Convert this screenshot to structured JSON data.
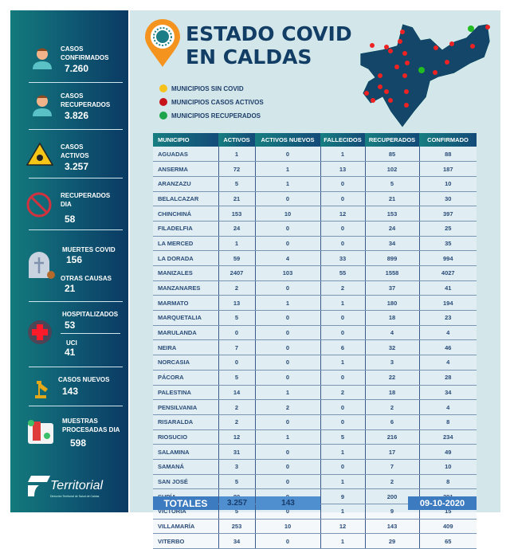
{
  "title": {
    "line1": "ESTADO COVID",
    "line2": "EN CALDAS"
  },
  "legend": [
    {
      "label": "MUNICIPIOS SIN COVID",
      "color": "#f7c21b"
    },
    {
      "label": "MUNICIPIOS CASOS ACTIVOS",
      "color": "#c8121a"
    },
    {
      "label": "MUNICIPIOS RECUPERADOS",
      "color": "#1ca54a"
    }
  ],
  "stats": {
    "confirmados": {
      "label": "CASOS\nCONFIRMADOS",
      "value": "7.260"
    },
    "recuperados": {
      "label": "CASOS\nRECUPERADOS",
      "value": "3.826"
    },
    "activos": {
      "label": "CASOS\nACTIVOS",
      "value": "3.257"
    },
    "recuperados_dia": {
      "label": "RECUPERADOS\nDIA",
      "value": "58"
    },
    "muertes": {
      "label": "MUERTES COVID",
      "value": "156"
    },
    "otras": {
      "label": "OTRAS CAUSAS",
      "value": "21"
    },
    "hospitalizados": {
      "label": "HOSPITALIZADOS",
      "value": "53"
    },
    "uci": {
      "label": "UCI",
      "value": "41"
    },
    "nuevos": {
      "label": "CASOS NUEVOS",
      "value": "143"
    },
    "muestras": {
      "label": "MUESTRAS\nPROCESADAS DIA",
      "value": "598"
    }
  },
  "logo": {
    "name": "Territorial",
    "subtitle": "Dirección Territorial de Salud de Caldas"
  },
  "table": {
    "headers": [
      "MUNICIPIO",
      "ACTIVOS",
      "ACTIVOS NUEVOS",
      "FALLECIDOS",
      "RECUPERADOS",
      "CONFIRMADO"
    ],
    "rows": [
      [
        "AGUADAS",
        "1",
        "0",
        "1",
        "85",
        "88"
      ],
      [
        "ANSERMA",
        "72",
        "1",
        "13",
        "102",
        "187"
      ],
      [
        "ARANZAZU",
        "5",
        "1",
        "0",
        "5",
        "10"
      ],
      [
        "BELALCAZAR",
        "21",
        "0",
        "0",
        "21",
        "30"
      ],
      [
        "CHINCHINÁ",
        "153",
        "10",
        "12",
        "153",
        "397"
      ],
      [
        "FILADELFIA",
        "24",
        "0",
        "0",
        "24",
        "25"
      ],
      [
        "LA MERCED",
        "1",
        "0",
        "0",
        "34",
        "35"
      ],
      [
        "LA DORADA",
        "59",
        "4",
        "33",
        "899",
        "994"
      ],
      [
        "MANIZALES",
        "2407",
        "103",
        "55",
        "1558",
        "4027"
      ],
      [
        "MANZANARES",
        "2",
        "0",
        "2",
        "37",
        "41"
      ],
      [
        "MARMATO",
        "13",
        "1",
        "1",
        "180",
        "194"
      ],
      [
        "MARQUETALIA",
        "5",
        "0",
        "0",
        "18",
        "23"
      ],
      [
        "MARULANDA",
        "0",
        "0",
        "0",
        "4",
        "4"
      ],
      [
        "NEIRA",
        "7",
        "0",
        "6",
        "32",
        "46"
      ],
      [
        "NORCASIA",
        "0",
        "0",
        "1",
        "3",
        "4"
      ],
      [
        "PÁCORA",
        "5",
        "0",
        "0",
        "22",
        "28"
      ],
      [
        "PALESTINA",
        "14",
        "1",
        "2",
        "18",
        "34"
      ],
      [
        "PENSILVANIA",
        "2",
        "2",
        "0",
        "2",
        "4"
      ],
      [
        "RISARALDA",
        "2",
        "0",
        "0",
        "6",
        "8"
      ],
      [
        "RIOSUCIO",
        "12",
        "1",
        "5",
        "216",
        "234"
      ],
      [
        "SALAMINA",
        "31",
        "0",
        "1",
        "17",
        "49"
      ],
      [
        "SAMANÁ",
        "3",
        "0",
        "0",
        "7",
        "10"
      ],
      [
        "SAN JOSÉ",
        "5",
        "0",
        "1",
        "2",
        "8"
      ],
      [
        "SUPÍA",
        "80",
        "9",
        "9",
        "200",
        "291"
      ],
      [
        "VICTORIA",
        "5",
        "0",
        "1",
        "9",
        "15"
      ],
      [
        "VILLAMARÍA",
        "253",
        "10",
        "12",
        "143",
        "409"
      ],
      [
        "VITERBO",
        "34",
        "0",
        "1",
        "29",
        "65"
      ]
    ],
    "totals": {
      "label": "TOTALES",
      "activos": "3.257",
      "nuevos": "143"
    },
    "date": "09-10-2020"
  }
}
